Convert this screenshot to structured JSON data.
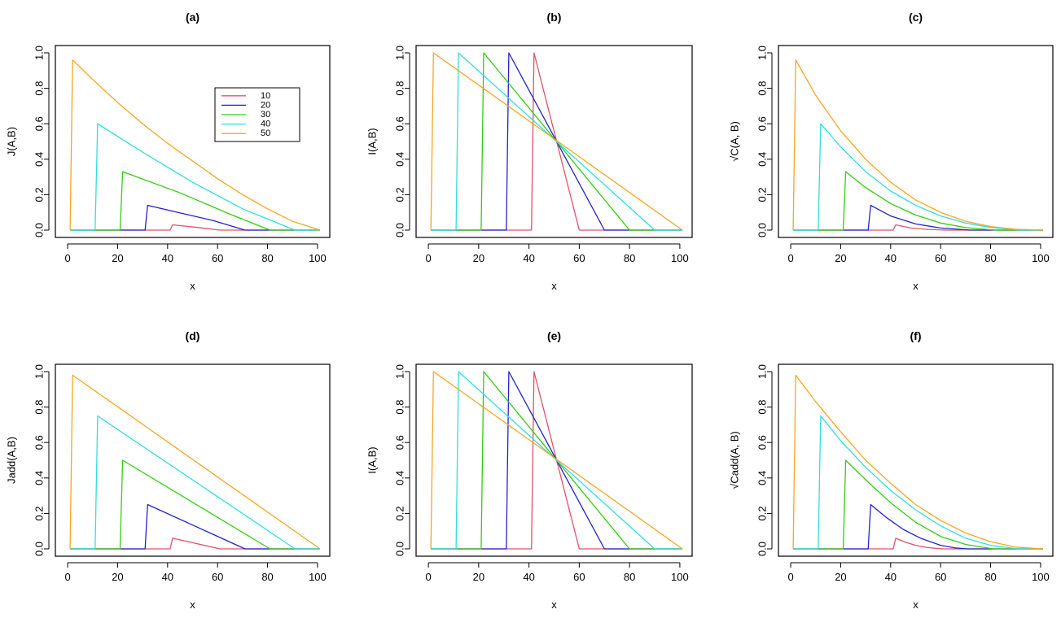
{
  "chart_data": [
    {
      "type": "line",
      "panel_label": "(a)",
      "xlabel": "x",
      "ylabel": "J(A,B)",
      "xlim": [
        0,
        100
      ],
      "ylim": [
        0,
        1.0
      ],
      "xticks": [
        "0",
        "20",
        "40",
        "60",
        "80",
        "100"
      ],
      "yticks": [
        "0.0",
        "0.2",
        "0.4",
        "0.6",
        "0.8",
        "1.0"
      ],
      "legend": {
        "position": "top-right",
        "entries": [
          "10",
          "20",
          "30",
          "40",
          "50"
        ]
      },
      "series": [
        {
          "name": "10",
          "color": "#DF536B",
          "x": [
            1,
            41,
            42,
            52,
            61,
            101
          ],
          "y": [
            0,
            0,
            0.03,
            0.015,
            0,
            0
          ]
        },
        {
          "name": "20",
          "color": "#2222CC",
          "x": [
            1,
            31,
            32,
            45,
            58,
            71,
            101
          ],
          "y": [
            0,
            0,
            0.14,
            0.097,
            0.055,
            0,
            0
          ]
        },
        {
          "name": "30",
          "color": "#33CC11",
          "x": [
            1,
            21,
            22,
            45,
            65,
            81,
            101
          ],
          "y": [
            0,
            0,
            0.33,
            0.21,
            0.09,
            0,
            0
          ]
        },
        {
          "name": "40",
          "color": "#33DDDD",
          "x": [
            1,
            11,
            12,
            30,
            50,
            70,
            91,
            101
          ],
          "y": [
            0,
            0,
            0.6,
            0.44,
            0.27,
            0.12,
            0,
            0
          ]
        },
        {
          "name": "50",
          "color": "#F5A623",
          "x": [
            1,
            2,
            10,
            20,
            30,
            40,
            50,
            60,
            70,
            80,
            90,
            101
          ],
          "y": [
            0,
            0.96,
            0.85,
            0.72,
            0.6,
            0.49,
            0.39,
            0.29,
            0.2,
            0.12,
            0.05,
            0
          ]
        }
      ]
    },
    {
      "type": "line",
      "panel_label": "(b)",
      "xlabel": "x",
      "ylabel": "I(A,B)",
      "xlim": [
        0,
        100
      ],
      "ylim": [
        0,
        1.0
      ],
      "xticks": [
        "0",
        "20",
        "40",
        "60",
        "80",
        "100"
      ],
      "yticks": [
        "0.0",
        "0.2",
        "0.4",
        "0.6",
        "0.8",
        "1.0"
      ],
      "series": [
        {
          "name": "10",
          "color": "#DF536B",
          "x": [
            1,
            41,
            42,
            60,
            101
          ],
          "y": [
            0,
            0,
            1,
            0,
            0
          ]
        },
        {
          "name": "20",
          "color": "#2222CC",
          "x": [
            1,
            31,
            32,
            70,
            101
          ],
          "y": [
            0,
            0,
            1,
            0,
            0
          ]
        },
        {
          "name": "30",
          "color": "#33CC11",
          "x": [
            1,
            21,
            22,
            80,
            101
          ],
          "y": [
            0,
            0,
            1,
            0,
            0
          ]
        },
        {
          "name": "40",
          "color": "#33DDDD",
          "x": [
            1,
            11,
            12,
            90,
            101
          ],
          "y": [
            0,
            0,
            1,
            0,
            0
          ]
        },
        {
          "name": "50",
          "color": "#F5A623",
          "x": [
            1,
            2,
            101
          ],
          "y": [
            0,
            1,
            0
          ]
        }
      ]
    },
    {
      "type": "line",
      "panel_label": "(c)",
      "xlabel": "x",
      "ylabel": "√C(A, B)",
      "xlim": [
        0,
        100
      ],
      "ylim": [
        0,
        1.0
      ],
      "xticks": [
        "0",
        "20",
        "40",
        "60",
        "80",
        "100"
      ],
      "yticks": [
        "0.0",
        "0.2",
        "0.4",
        "0.6",
        "0.8",
        "1.0"
      ],
      "series": [
        {
          "name": "10",
          "color": "#DF536B",
          "x": [
            1,
            41,
            42,
            48,
            55,
            62,
            101
          ],
          "y": [
            0,
            0,
            0.03,
            0.012,
            0.004,
            0,
            0
          ]
        },
        {
          "name": "20",
          "color": "#2222CC",
          "x": [
            1,
            31,
            32,
            40,
            50,
            60,
            72,
            101
          ],
          "y": [
            0,
            0,
            0.14,
            0.08,
            0.035,
            0.012,
            0,
            0
          ]
        },
        {
          "name": "30",
          "color": "#33CC11",
          "x": [
            1,
            21,
            22,
            30,
            40,
            50,
            60,
            70,
            82,
            101
          ],
          "y": [
            0,
            0,
            0.33,
            0.24,
            0.15,
            0.085,
            0.04,
            0.014,
            0,
            0
          ]
        },
        {
          "name": "40",
          "color": "#33DDDD",
          "x": [
            1,
            11,
            12,
            20,
            30,
            40,
            50,
            60,
            70,
            80,
            92,
            101
          ],
          "y": [
            0,
            0,
            0.6,
            0.47,
            0.33,
            0.22,
            0.14,
            0.08,
            0.04,
            0.015,
            0,
            0
          ]
        },
        {
          "name": "50",
          "color": "#F5A623",
          "x": [
            1,
            2,
            10,
            20,
            30,
            40,
            50,
            60,
            70,
            80,
            90,
            101
          ],
          "y": [
            0,
            0.96,
            0.76,
            0.56,
            0.4,
            0.27,
            0.17,
            0.1,
            0.05,
            0.02,
            0.005,
            0
          ]
        }
      ]
    },
    {
      "type": "line",
      "panel_label": "(d)",
      "xlabel": "x",
      "ylabel": "Jadd(A,B)",
      "xlim": [
        0,
        100
      ],
      "ylim": [
        0,
        1.0
      ],
      "xticks": [
        "0",
        "20",
        "40",
        "60",
        "80",
        "100"
      ],
      "yticks": [
        "0.0",
        "0.2",
        "0.4",
        "0.6",
        "0.8",
        "1.0"
      ],
      "series": [
        {
          "name": "10",
          "color": "#DF536B",
          "x": [
            1,
            41,
            42,
            61,
            101
          ],
          "y": [
            0,
            0,
            0.06,
            0,
            0
          ]
        },
        {
          "name": "20",
          "color": "#2222CC",
          "x": [
            1,
            31,
            32,
            71,
            101
          ],
          "y": [
            0,
            0,
            0.25,
            0,
            0
          ]
        },
        {
          "name": "30",
          "color": "#33CC11",
          "x": [
            1,
            21,
            22,
            81,
            101
          ],
          "y": [
            0,
            0,
            0.5,
            0,
            0
          ]
        },
        {
          "name": "40",
          "color": "#33DDDD",
          "x": [
            1,
            11,
            12,
            91,
            101
          ],
          "y": [
            0,
            0,
            0.75,
            0,
            0
          ]
        },
        {
          "name": "50",
          "color": "#F5A623",
          "x": [
            1,
            2,
            101
          ],
          "y": [
            0,
            0.98,
            0
          ]
        }
      ]
    },
    {
      "type": "line",
      "panel_label": "(e)",
      "xlabel": "x",
      "ylabel": "I(A,B)",
      "xlim": [
        0,
        100
      ],
      "ylim": [
        0,
        1.0
      ],
      "xticks": [
        "0",
        "20",
        "40",
        "60",
        "80",
        "100"
      ],
      "yticks": [
        "0.0",
        "0.2",
        "0.4",
        "0.6",
        "0.8",
        "1.0"
      ],
      "series": [
        {
          "name": "10",
          "color": "#DF536B",
          "x": [
            1,
            41,
            42,
            60,
            101
          ],
          "y": [
            0,
            0,
            1,
            0,
            0
          ]
        },
        {
          "name": "20",
          "color": "#2222CC",
          "x": [
            1,
            31,
            32,
            70,
            101
          ],
          "y": [
            0,
            0,
            1,
            0,
            0
          ]
        },
        {
          "name": "30",
          "color": "#33CC11",
          "x": [
            1,
            21,
            22,
            80,
            101
          ],
          "y": [
            0,
            0,
            1,
            0,
            0
          ]
        },
        {
          "name": "40",
          "color": "#33DDDD",
          "x": [
            1,
            11,
            12,
            90,
            101
          ],
          "y": [
            0,
            0,
            1,
            0,
            0
          ]
        },
        {
          "name": "50",
          "color": "#F5A623",
          "x": [
            1,
            2,
            101
          ],
          "y": [
            0,
            1,
            0
          ]
        }
      ]
    },
    {
      "type": "line",
      "panel_label": "(f)",
      "xlabel": "x",
      "ylabel": "√Cadd(A, B)",
      "xlim": [
        0,
        100
      ],
      "ylim": [
        0,
        1.0
      ],
      "xticks": [
        "0",
        "20",
        "40",
        "60",
        "80",
        "100"
      ],
      "yticks": [
        "0.0",
        "0.2",
        "0.4",
        "0.6",
        "0.8",
        "1.0"
      ],
      "series": [
        {
          "name": "10",
          "color": "#DF536B",
          "x": [
            1,
            41,
            42,
            46,
            50,
            54,
            58,
            61,
            101
          ],
          "y": [
            0,
            0,
            0.06,
            0.037,
            0.02,
            0.009,
            0.003,
            0,
            0
          ]
        },
        {
          "name": "20",
          "color": "#2222CC",
          "x": [
            1,
            31,
            32,
            38,
            45,
            52,
            60,
            66,
            71,
            101
          ],
          "y": [
            0,
            0,
            0.25,
            0.18,
            0.11,
            0.06,
            0.02,
            0.005,
            0,
            0
          ]
        },
        {
          "name": "30",
          "color": "#33CC11",
          "x": [
            1,
            21,
            22,
            30,
            40,
            50,
            60,
            70,
            81,
            101
          ],
          "y": [
            0,
            0,
            0.5,
            0.39,
            0.26,
            0.15,
            0.07,
            0.025,
            0,
            0
          ]
        },
        {
          "name": "40",
          "color": "#33DDDD",
          "x": [
            1,
            11,
            12,
            20,
            30,
            40,
            50,
            60,
            70,
            80,
            91,
            101
          ],
          "y": [
            0,
            0,
            0.75,
            0.61,
            0.46,
            0.33,
            0.22,
            0.13,
            0.06,
            0.02,
            0,
            0
          ]
        },
        {
          "name": "50",
          "color": "#F5A623",
          "x": [
            1,
            2,
            10,
            20,
            30,
            40,
            50,
            60,
            70,
            80,
            90,
            101
          ],
          "y": [
            0,
            0.98,
            0.83,
            0.66,
            0.5,
            0.37,
            0.25,
            0.16,
            0.09,
            0.04,
            0.01,
            0
          ]
        }
      ]
    }
  ]
}
